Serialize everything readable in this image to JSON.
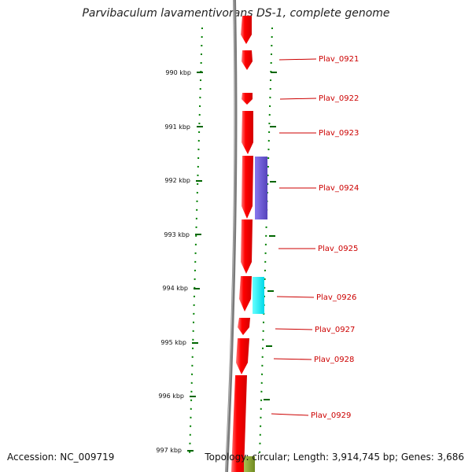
{
  "title": "Parvibaculum lavamentivorans DS-1, complete genome",
  "footer": {
    "accession": "Accession: NC_009719",
    "summary": "Topology: circular; Length: 3,914,745 bp; Genes: 3,686"
  },
  "colors": {
    "gene_forward": "#ff0000",
    "feature_purple": "#6655cc",
    "feature_cyan": "#00e8f0",
    "feature_green": "#88a030",
    "backbone": "#808080",
    "dotted_ring": "#008000",
    "label": "#cc0000"
  },
  "ticks": [
    {
      "label": "990 kbp",
      "kbp": 990
    },
    {
      "label": "991 kbp",
      "kbp": 991
    },
    {
      "label": "992 kbp",
      "kbp": 992
    },
    {
      "label": "993 kbp",
      "kbp": 993
    },
    {
      "label": "994 kbp",
      "kbp": 994
    },
    {
      "label": "995 kbp",
      "kbp": 995
    },
    {
      "label": "996 kbp",
      "kbp": 996
    },
    {
      "label": "997 kbp",
      "kbp": 997
    }
  ],
  "genes": [
    {
      "name": "Plav_0921"
    },
    {
      "name": "Plav_0922"
    },
    {
      "name": "Plav_0923"
    },
    {
      "name": "Plav_0924"
    },
    {
      "name": "Plav_0925"
    },
    {
      "name": "Plav_0926"
    },
    {
      "name": "Plav_0927"
    },
    {
      "name": "Plav_0928"
    },
    {
      "name": "Plav_0929"
    }
  ]
}
